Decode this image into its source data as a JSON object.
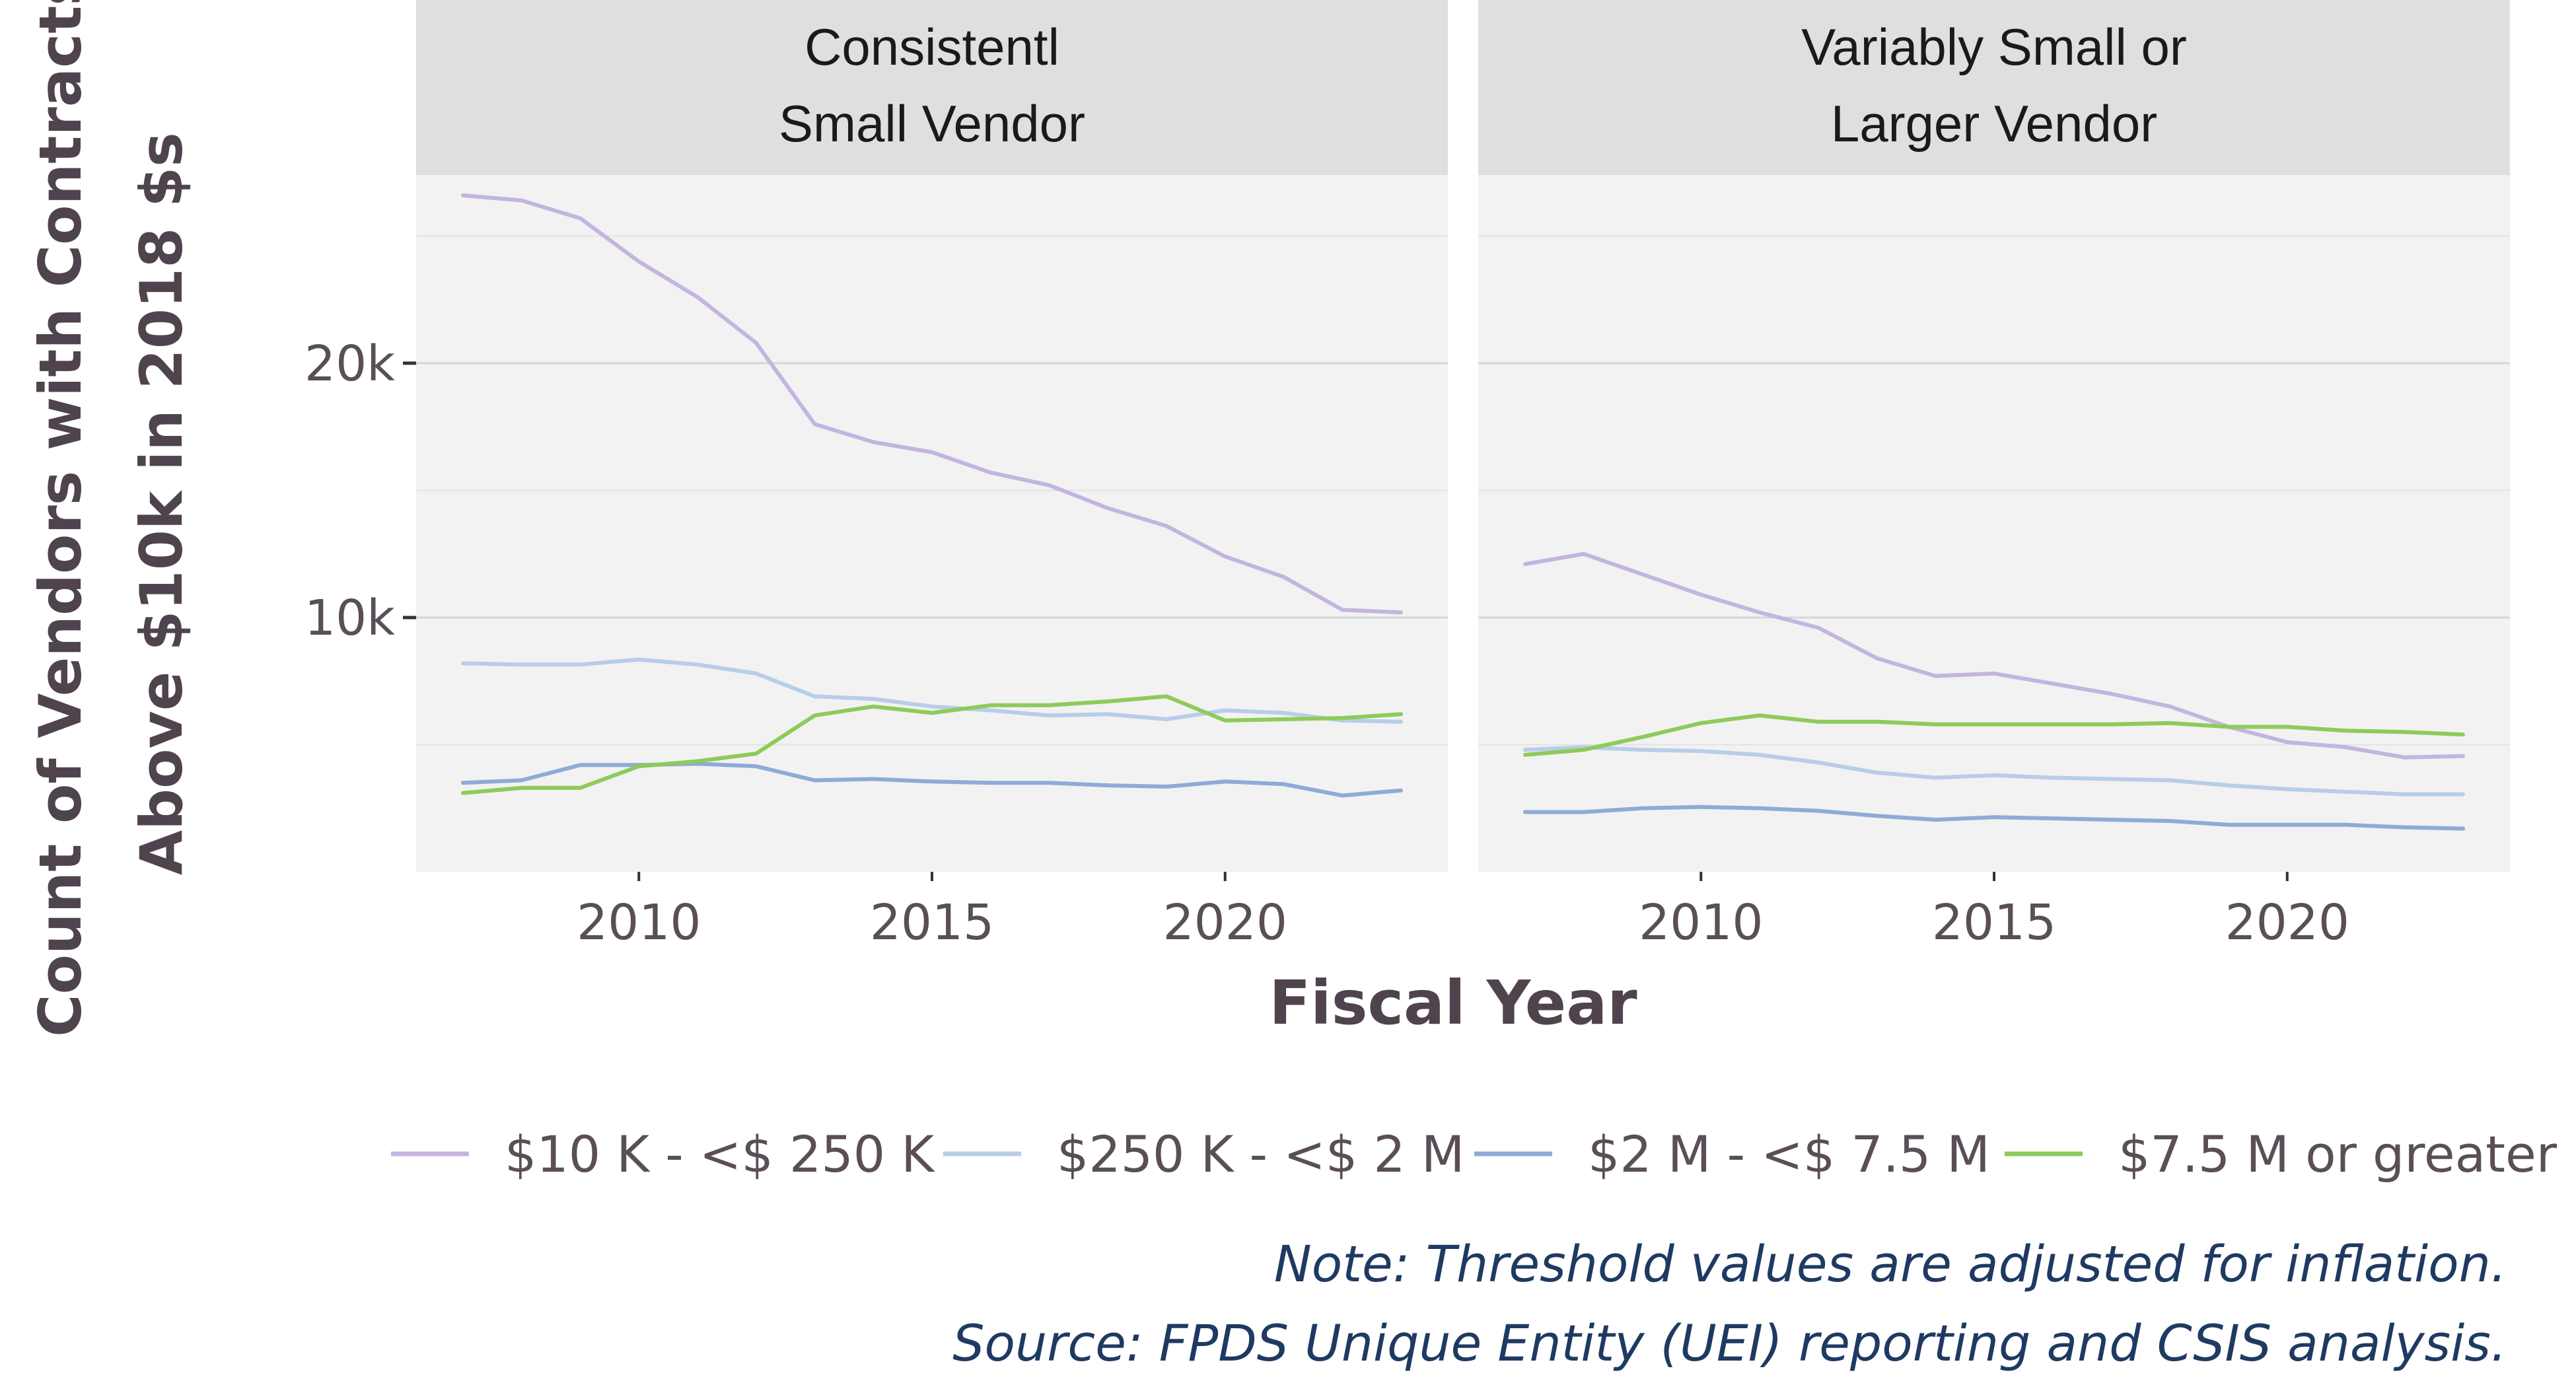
{
  "chart_data": {
    "type": "line",
    "facet_type": "small-multiples",
    "ylabel_lines": [
      "Count of Vendors with Contracts",
      "Above $10k in 2018 $s"
    ],
    "xlabel": "Fiscal Year",
    "xlim": [
      2006.2,
      2023.8
    ],
    "ylim": [
      0,
      27400
    ],
    "y_ticks": [
      10000,
      20000
    ],
    "y_tick_labels": [
      "10k",
      "20k"
    ],
    "x_ticks": [
      2010,
      2015,
      2020
    ],
    "x_tick_labels": [
      "2010",
      "2015",
      "2020"
    ],
    "grid": true,
    "legend_position": "bottom",
    "x": [
      2007,
      2008,
      2009,
      2010,
      2011,
      2012,
      2013,
      2014,
      2015,
      2016,
      2017,
      2018,
      2019,
      2020,
      2021,
      2022,
      2023
    ],
    "series_styles": [
      {
        "name": "$10 K - <$ 250 K",
        "color": "#c4b4e0"
      },
      {
        "name": "$250 K - <$ 2 M",
        "color": "#b8cde8"
      },
      {
        "name": "$2 M - <$ 7.5 M",
        "color": "#8eabd6"
      },
      {
        "name": "$7.5 M or greater",
        "color": "#8dcb5a"
      }
    ],
    "panels": [
      {
        "title_lines": [
          "Consistentl",
          "Small Vendor"
        ],
        "series": [
          {
            "name": "$10 K - <$ 250 K",
            "values": [
              26600,
              26400,
              25700,
              24000,
              22600,
              20800,
              17600,
              16900,
              16500,
              15700,
              15200,
              14300,
              13600,
              12400,
              11600,
              10300,
              10200
            ]
          },
          {
            "name": "$250 K - <$ 2 M",
            "values": [
              8200,
              8150,
              8150,
              8350,
              8150,
              7800,
              6900,
              6800,
              6500,
              6350,
              6150,
              6200,
              6000,
              6350,
              6250,
              5950,
              5900
            ]
          },
          {
            "name": "$2 M - <$ 7.5 M",
            "values": [
              3500,
              3600,
              4200,
              4200,
              4250,
              4150,
              3600,
              3650,
              3550,
              3500,
              3500,
              3400,
              3350,
              3550,
              3450,
              3000,
              3200
            ]
          },
          {
            "name": "$7.5 M or greater",
            "values": [
              3100,
              3300,
              3300,
              4150,
              4350,
              4650,
              6150,
              6500,
              6250,
              6550,
              6550,
              6700,
              6900,
              5950,
              6000,
              6050,
              6200
            ]
          }
        ]
      },
      {
        "title_lines": [
          "Variably Small or",
          "Larger Vendor"
        ],
        "series": [
          {
            "name": "$10 K - <$ 250 K",
            "values": [
              12100,
              12500,
              11700,
              10900,
              10200,
              9600,
              8400,
              7700,
              7800,
              7400,
              7000,
              6500,
              5700,
              5100,
              4900,
              4500,
              4550
            ]
          },
          {
            "name": "$250 K - <$ 2 M",
            "values": [
              4800,
              4900,
              4800,
              4750,
              4600,
              4300,
              3900,
              3700,
              3800,
              3700,
              3650,
              3600,
              3400,
              3250,
              3150,
              3050,
              3050
            ]
          },
          {
            "name": "$2 M - <$ 7.5 M",
            "values": [
              2350,
              2350,
              2500,
              2550,
              2500,
              2400,
              2200,
              2050,
              2150,
              2100,
              2050,
              2000,
              1850,
              1850,
              1850,
              1750,
              1700
            ]
          },
          {
            "name": "$7.5 M or greater",
            "values": [
              4600,
              4800,
              5300,
              5850,
              6150,
              5900,
              5900,
              5800,
              5800,
              5800,
              5800,
              5850,
              5700,
              5700,
              5550,
              5500,
              5400
            ]
          }
        ]
      }
    ],
    "legend": [
      {
        "label": "$10 K - <$ 250 K",
        "color": "#c4b4e0"
      },
      {
        "label": "$250 K - <$ 2 M",
        "color": "#b8cde8"
      },
      {
        "label": "$2 M - <$ 7.5 M",
        "color": "#8eabd6"
      },
      {
        "label": "$7.5 M or greater",
        "color": "#8dcb5a"
      }
    ],
    "notes": [
      "Note: Threshold values are adjusted for inflation.",
      "Source: FPDS Unique Entity (UEI) reporting and CSIS analysis."
    ],
    "colors": {
      "panel_bg": "#f2f2f2",
      "strip_bg": "#dfdfdf",
      "grid_major": "#d6d6d6",
      "grid_minor": "#e3e3e3",
      "axis_text": "#5a4e57",
      "title_text": "#4f444d",
      "note_text": "#1f3a62",
      "strip_text": "#1a1a1a"
    }
  }
}
